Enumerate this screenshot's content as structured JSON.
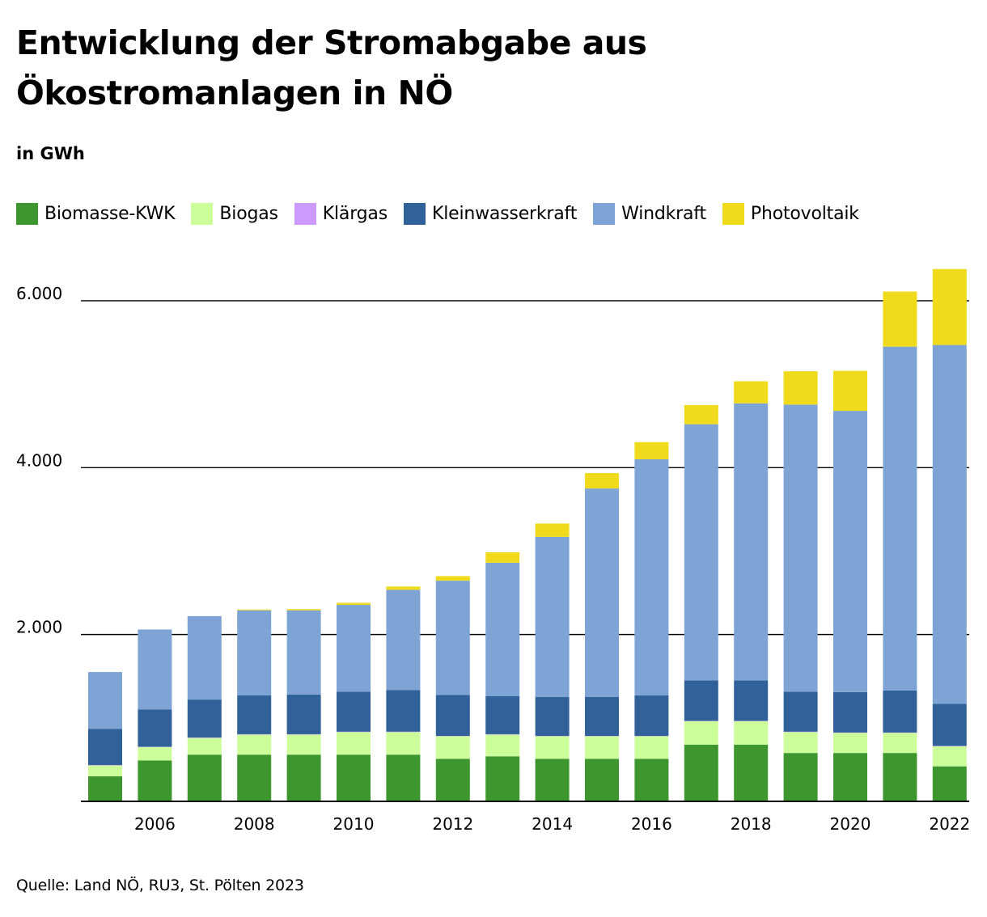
{
  "header": {
    "title_line1": "Entwicklung der Stromabgabe aus",
    "title_line2": "Ökostromanlagen in NÖ",
    "unit": "in GWh"
  },
  "footer": {
    "source": "Quelle: Land NÖ, RU3, St. Pölten 2023"
  },
  "chart_data": {
    "type": "bar",
    "stacked": true,
    "title": "Entwicklung der Stromabgabe aus Ökostromanlagen in NÖ",
    "ylabel": "in GWh",
    "xlabel": "",
    "ylim": [
      0,
      6600
    ],
    "yticks": [
      2000,
      4000,
      6000
    ],
    "ytick_labels": [
      "2.000",
      "4.000",
      "6.000"
    ],
    "grid": "horizontal",
    "legend_position": "top",
    "categories": [
      "2005",
      "2006",
      "2007",
      "2008",
      "2009",
      "2010",
      "2011",
      "2012",
      "2013",
      "2014",
      "2015",
      "2016",
      "2017",
      "2018",
      "2019",
      "2020",
      "2021",
      "2022"
    ],
    "xtick_labels": [
      "",
      "2006",
      "",
      "2008",
      "",
      "2010",
      "",
      "2012",
      "",
      "2014",
      "",
      "2016",
      "",
      "2018",
      "",
      "2020",
      "",
      "2022"
    ],
    "series": [
      {
        "name": "Biomasse-KWK",
        "color": "#3e962e",
        "values": [
          300,
          490,
          560,
          560,
          560,
          560,
          560,
          510,
          540,
          510,
          510,
          510,
          680,
          680,
          580,
          580,
          580,
          420
        ]
      },
      {
        "name": "Biogas",
        "color": "#ccff99",
        "values": [
          130,
          160,
          200,
          240,
          240,
          270,
          270,
          270,
          260,
          270,
          270,
          270,
          280,
          280,
          250,
          240,
          240,
          240
        ]
      },
      {
        "name": "Klärgas",
        "color": "#cc99ff",
        "values": [
          5,
          5,
          5,
          5,
          5,
          5,
          5,
          5,
          5,
          5,
          5,
          5,
          5,
          5,
          5,
          5,
          5,
          5
        ]
      },
      {
        "name": "Kleinwasserkraft",
        "color": "#316199",
        "values": [
          435,
          445,
          455,
          465,
          475,
          480,
          500,
          490,
          455,
          465,
          465,
          485,
          485,
          485,
          480,
          485,
          505,
          505
        ]
      },
      {
        "name": "Windkraft",
        "color": "#7ea4d6",
        "values": [
          680,
          960,
          1000,
          1020,
          1010,
          1040,
          1200,
          1370,
          1600,
          1920,
          2500,
          2830,
          3070,
          3320,
          3440,
          3370,
          4120,
          4300
        ]
      },
      {
        "name": "Photovoltaik",
        "color": "#f0da1c",
        "values": [
          0,
          0,
          0,
          10,
          15,
          25,
          40,
          55,
          125,
          160,
          185,
          205,
          230,
          265,
          400,
          480,
          660,
          910
        ]
      }
    ]
  }
}
